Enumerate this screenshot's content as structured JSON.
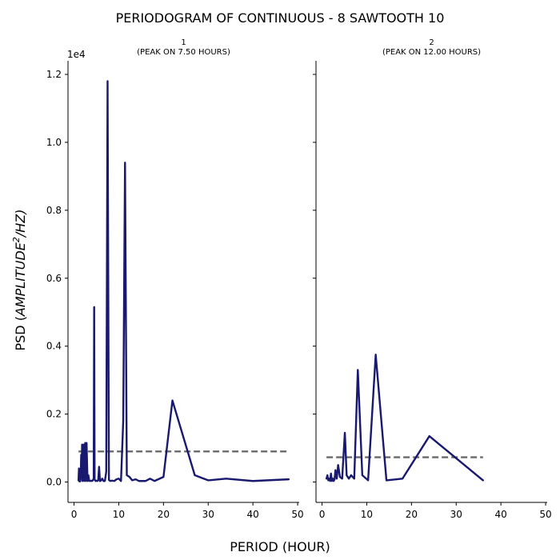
{
  "figure": {
    "suptitle": "PERIODOGRAM OF CONTINUOUS - 8 SAWTOOTH 10",
    "xlabel": "PERIOD (HOUR)",
    "ylabel_main": "PSD (",
    "ylabel_italic": "AMPLITUDE",
    "ylabel_sup": "2",
    "ylabel_tail": "/HZ)",
    "offset_text": "1e4",
    "line_color": "#191970",
    "threshold_color": "#696969"
  },
  "chart_data": [
    {
      "type": "line",
      "title_line1": "1",
      "title_line2": "(PEAK ON 7.50 HOURS)",
      "xlim": [
        -1.35,
        50.35
      ],
      "ylim": [
        -600,
        12400
      ],
      "xticks": [
        0,
        10,
        20,
        30,
        40,
        50
      ],
      "yticks": [
        0,
        2000,
        4000,
        6000,
        8000,
        10000,
        12000
      ],
      "ytick_labels": [
        "0.0",
        "0.2",
        "0.4",
        "0.6",
        "0.8",
        "1.0",
        "1.2"
      ],
      "series": [
        {
          "x": [
            1.0,
            1.1,
            1.2,
            1.3,
            1.4,
            1.5,
            1.6,
            1.7,
            1.8,
            1.9,
            2.0,
            2.1,
            2.2,
            2.3,
            2.4,
            2.5,
            2.6,
            2.7,
            2.8,
            3.0,
            3.1,
            3.2,
            3.4,
            3.6,
            3.8,
            4.0,
            4.2,
            4.4,
            4.5,
            4.6,
            4.8,
            5.0,
            5.2,
            5.4,
            5.6,
            5.8,
            6.0,
            6.3,
            6.6,
            6.9,
            7.2,
            7.5,
            7.8,
            8.1,
            8.5,
            9.0,
            9.5,
            10.0,
            10.5,
            11.0,
            11.4,
            11.8,
            12.4,
            13.0,
            13.8,
            14.5,
            15.2,
            16.0,
            17.0,
            18.0,
            20.0,
            22.0,
            27.0,
            30.0,
            34.0,
            40.0,
            48.0
          ],
          "y": [
            50,
            400,
            20,
            300,
            20,
            200,
            800,
            100,
            1100,
            30,
            1100,
            100,
            1100,
            30,
            600,
            1150,
            100,
            30,
            1150,
            100,
            30,
            200,
            40,
            30,
            40,
            30,
            50,
            100,
            5150,
            80,
            30,
            40,
            30,
            50,
            450,
            30,
            40,
            100,
            30,
            30,
            300,
            11800,
            60,
            30,
            40,
            30,
            80,
            100,
            30,
            1800,
            9400,
            200,
            150,
            50,
            80,
            30,
            30,
            30,
            100,
            30,
            150,
            2400,
            200,
            50,
            100,
            30,
            80
          ]
        }
      ],
      "threshold": {
        "x": [
          1.0,
          47.5
        ],
        "y": [
          900,
          900
        ]
      }
    },
    {
      "type": "line",
      "title_line1": "2",
      "title_line2": "(PEAK ON 12.00 HOURS)",
      "xlim": [
        -1.35,
        50.35
      ],
      "ylim": [
        -600,
        12400
      ],
      "xticks": [
        0,
        10,
        20,
        30,
        40,
        50
      ],
      "yticks": [
        0,
        2000,
        4000,
        6000,
        8000,
        10000,
        12000
      ],
      "series": [
        {
          "x": [
            1.0,
            1.2,
            1.4,
            1.6,
            1.8,
            2.0,
            2.2,
            2.4,
            2.6,
            2.8,
            3.0,
            3.3,
            3.6,
            4.0,
            4.5,
            5.1,
            5.5,
            6.0,
            6.5,
            7.2,
            8.0,
            9.0,
            10.3,
            12.0,
            14.4,
            18.0,
            24.0,
            30.0,
            36.0
          ],
          "y": [
            100,
            200,
            50,
            100,
            30,
            250,
            30,
            100,
            30,
            80,
            350,
            100,
            500,
            150,
            100,
            1450,
            200,
            100,
            200,
            100,
            3300,
            200,
            50,
            3750,
            50,
            100,
            1350,
            700,
            50
          ]
        }
      ],
      "threshold": {
        "x": [
          1.0,
          36.0
        ],
        "y": [
          730,
          730
        ]
      }
    }
  ]
}
